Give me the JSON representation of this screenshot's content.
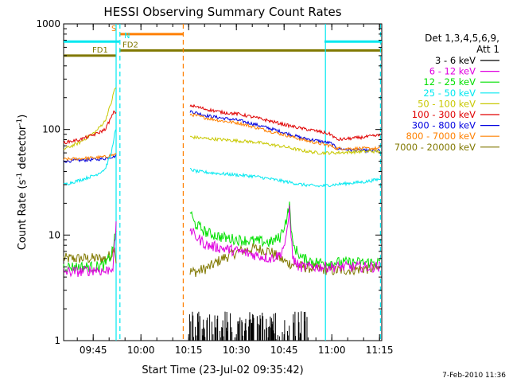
{
  "chart_data": {
    "type": "line",
    "title": "HESSI Observing Summary Count Rates",
    "xlabel": "Start Time (23-Jul-02 09:35:42)",
    "ylabel_main": "Count Rate (s",
    "ylabel_sup1": "-1",
    "ylabel_mid": " detector",
    "ylabel_sup2": "-1",
    "ylabel_end": ")",
    "yscale": "log",
    "ylim": [
      1,
      1000
    ],
    "xlim_minutes": [
      0,
      100
    ],
    "x_units": "minutes since 09:35:42",
    "x_ticks": [
      {
        "label": "09:45",
        "x": 9.3
      },
      {
        "label": "10:00",
        "x": 24.3
      },
      {
        "label": "10:15",
        "x": 39.3
      },
      {
        "label": "10:30",
        "x": 54.3
      },
      {
        "label": "10:45",
        "x": 69.3
      },
      {
        "label": "11:00",
        "x": 84.3
      },
      {
        "label": "11:15",
        "x": 99.3
      }
    ],
    "y_ticks": [
      {
        "label": "1",
        "y": 1
      },
      {
        "label": "10",
        "y": 10
      },
      {
        "label": "100",
        "y": 100
      },
      {
        "label": "1000",
        "y": 1000
      }
    ],
    "legend": {
      "header1": "Det 1,3,4,5,6,9,",
      "header2": "Att 1",
      "placement": "right",
      "entries": [
        {
          "label": "3 - 6 keV",
          "color": "#000000"
        },
        {
          "label": "6 - 12 keV",
          "color": "#e000e0"
        },
        {
          "label": "12 - 25 keV",
          "color": "#00e000"
        },
        {
          "label": "25 - 50 keV",
          "color": "#00e8f0"
        },
        {
          "label": "50 - 100 keV",
          "color": "#c8c800"
        },
        {
          "label": "100 - 300 keV",
          "color": "#e00000"
        },
        {
          "label": "300 - 800 keV",
          "color": "#0000e0"
        },
        {
          "label": "800 - 7000 keV",
          "color": "#ff8000"
        },
        {
          "label": "7000 - 20000 keV",
          "color": "#807800"
        }
      ]
    },
    "segments_x": [
      [
        0,
        16.5
      ],
      [
        39.5,
        99.5
      ]
    ],
    "series": [
      {
        "name": "3 - 6 keV",
        "color": "#000000",
        "style": "spikes",
        "points": [
          [
            39.5,
            1.8
          ],
          [
            42,
            1.9
          ],
          [
            45,
            1.85
          ],
          [
            48,
            1.9
          ],
          [
            52,
            1.8
          ],
          [
            56,
            1.9
          ],
          [
            60,
            1.85
          ],
          [
            64,
            1.9
          ],
          [
            68,
            1.8
          ],
          [
            72,
            1.9
          ],
          [
            76,
            1.8
          ]
        ]
      },
      {
        "name": "6 - 12 keV",
        "color": "#e000e0",
        "points": [
          [
            0,
            4.5
          ],
          [
            5,
            4.5
          ],
          [
            10,
            4.7
          ],
          [
            13,
            4.5
          ],
          [
            15.5,
            5
          ],
          [
            16.5,
            12
          ],
          [
            39.5,
            12
          ],
          [
            41,
            10
          ],
          [
            45,
            8
          ],
          [
            50,
            7.5
          ],
          [
            55,
            7
          ],
          [
            60,
            6.5
          ],
          [
            65,
            6
          ],
          [
            68,
            6.5
          ],
          [
            70,
            9
          ],
          [
            71,
            18
          ],
          [
            72,
            6
          ],
          [
            74,
            5
          ],
          [
            78,
            5
          ],
          [
            84,
            5
          ],
          [
            90,
            5
          ],
          [
            99.5,
            5
          ]
        ]
      },
      {
        "name": "12 - 25 keV",
        "color": "#00e000",
        "points": [
          [
            0,
            5
          ],
          [
            5,
            5
          ],
          [
            10,
            5
          ],
          [
            13,
            5.2
          ],
          [
            15,
            6.5
          ],
          [
            16,
            9
          ],
          [
            16.5,
            11
          ],
          [
            39.5,
            18
          ],
          [
            41,
            13
          ],
          [
            45,
            10.5
          ],
          [
            50,
            9.5
          ],
          [
            55,
            9
          ],
          [
            60,
            8.8
          ],
          [
            65,
            8.5
          ],
          [
            68,
            9.5
          ],
          [
            70,
            14
          ],
          [
            71,
            19
          ],
          [
            72,
            8
          ],
          [
            75,
            6
          ],
          [
            80,
            5.5
          ],
          [
            90,
            5.5
          ],
          [
            99.5,
            5.5
          ]
        ]
      },
      {
        "name": "25 - 50 keV",
        "color": "#00e8f0",
        "points": [
          [
            0,
            30
          ],
          [
            5,
            33
          ],
          [
            10,
            37
          ],
          [
            13,
            42
          ],
          [
            15,
            60
          ],
          [
            16,
            90
          ],
          [
            16.5,
            100
          ],
          [
            39.5,
            42
          ],
          [
            42,
            40
          ],
          [
            50,
            38
          ],
          [
            60,
            36
          ],
          [
            70,
            32
          ],
          [
            75,
            30
          ],
          [
            80,
            29
          ],
          [
            85,
            30
          ],
          [
            90,
            31
          ],
          [
            95,
            32
          ],
          [
            99.5,
            34
          ]
        ]
      },
      {
        "name": "50 - 100 keV",
        "color": "#c8c800",
        "points": [
          [
            0,
            65
          ],
          [
            5,
            75
          ],
          [
            10,
            95
          ],
          [
            13,
            120
          ],
          [
            15,
            180
          ],
          [
            16,
            240
          ],
          [
            16.5,
            250
          ],
          [
            39.5,
            85
          ],
          [
            45,
            82
          ],
          [
            50,
            80
          ],
          [
            55,
            78
          ],
          [
            60,
            76
          ],
          [
            65,
            72
          ],
          [
            70,
            68
          ],
          [
            75,
            63
          ],
          [
            80,
            60
          ],
          [
            85,
            60
          ],
          [
            90,
            61
          ],
          [
            95,
            62
          ],
          [
            99.5,
            62
          ]
        ]
      },
      {
        "name": "100 - 300 keV",
        "color": "#e00000",
        "points": [
          [
            0,
            75
          ],
          [
            5,
            80
          ],
          [
            10,
            90
          ],
          [
            13,
            100
          ],
          [
            15,
            130
          ],
          [
            16,
            150
          ],
          [
            16.5,
            140
          ],
          [
            39.5,
            170
          ],
          [
            45,
            155
          ],
          [
            50,
            145
          ],
          [
            55,
            140
          ],
          [
            60,
            130
          ],
          [
            65,
            120
          ],
          [
            70,
            110
          ],
          [
            75,
            102
          ],
          [
            80,
            96
          ],
          [
            84,
            90
          ],
          [
            86,
            80
          ],
          [
            90,
            82
          ],
          [
            95,
            85
          ],
          [
            99.5,
            88
          ]
        ]
      },
      {
        "name": "300 - 800 keV",
        "color": "#0000e0",
        "points": [
          [
            0,
            50
          ],
          [
            5,
            51
          ],
          [
            10,
            52
          ],
          [
            13,
            53
          ],
          [
            15,
            55
          ],
          [
            16.5,
            56
          ],
          [
            39.5,
            150
          ],
          [
            45,
            135
          ],
          [
            50,
            128
          ],
          [
            55,
            122
          ],
          [
            60,
            112
          ],
          [
            65,
            102
          ],
          [
            70,
            92
          ],
          [
            75,
            83
          ],
          [
            80,
            78
          ],
          [
            84,
            74
          ],
          [
            86,
            66
          ],
          [
            90,
            64
          ],
          [
            95,
            63
          ],
          [
            99.5,
            63
          ]
        ]
      },
      {
        "name": "800 - 7000 keV",
        "color": "#ff8000",
        "points": [
          [
            0,
            52
          ],
          [
            5,
            53
          ],
          [
            10,
            54
          ],
          [
            13,
            55
          ],
          [
            15,
            57
          ],
          [
            16.5,
            58
          ],
          [
            39.5,
            140
          ],
          [
            45,
            128
          ],
          [
            50,
            120
          ],
          [
            55,
            115
          ],
          [
            60,
            105
          ],
          [
            65,
            96
          ],
          [
            70,
            88
          ],
          [
            75,
            80
          ],
          [
            80,
            74
          ],
          [
            84,
            70
          ],
          [
            86,
            66
          ],
          [
            90,
            66
          ],
          [
            95,
            66
          ],
          [
            99.5,
            66
          ]
        ]
      },
      {
        "name": "7000 - 20000 keV",
        "color": "#807800",
        "points": [
          [
            0,
            6
          ],
          [
            5,
            6
          ],
          [
            10,
            6
          ],
          [
            13,
            6
          ],
          [
            15,
            6.5
          ],
          [
            16,
            8
          ],
          [
            16.5,
            5.5
          ],
          [
            39.5,
            4.5
          ],
          [
            42,
            4.5
          ],
          [
            46,
            5
          ],
          [
            50,
            6
          ],
          [
            55,
            7
          ],
          [
            60,
            7.5
          ],
          [
            65,
            7
          ],
          [
            68,
            6
          ],
          [
            70,
            5.5
          ],
          [
            75,
            5
          ],
          [
            80,
            4.8
          ],
          [
            85,
            4.6
          ],
          [
            90,
            4.7
          ],
          [
            95,
            4.8
          ],
          [
            99.5,
            4.8
          ]
        ]
      }
    ],
    "flags": [
      {
        "label": "S",
        "color": "#ff8000",
        "y": 800,
        "x_start": 17.8,
        "x_end": 37.5,
        "label_x": 15
      },
      {
        "label": "N",
        "color": "#00e8f0",
        "y": 680,
        "x_start": 0,
        "x_end": 17.5,
        "label_x": 19
      },
      {
        "label": "N",
        "color": "#00e8f0",
        "y": 680,
        "x_start": 82,
        "x_end": 100
      },
      {
        "label": "FD1",
        "color": "#807800",
        "y": 500,
        "x_start": 0,
        "x_end": 16.5,
        "label_x": 9
      },
      {
        "label": "FD2",
        "color": "#807800",
        "y": 560,
        "x_start": 17.5,
        "x_end": 100,
        "label_x": 18.5
      }
    ],
    "vlines": [
      {
        "x": 16.5,
        "color": "#00e8f0",
        "dash": false
      },
      {
        "x": 17.7,
        "color": "#00e8f0",
        "dash": true
      },
      {
        "x": 37.6,
        "color": "#ff8000",
        "dash": true
      },
      {
        "x": 82.3,
        "color": "#00e8f0",
        "dash": false
      },
      {
        "x": 99.6,
        "color": "#00e8f0",
        "dash": true
      }
    ],
    "footer": "7-Feb-2010 11:36"
  }
}
